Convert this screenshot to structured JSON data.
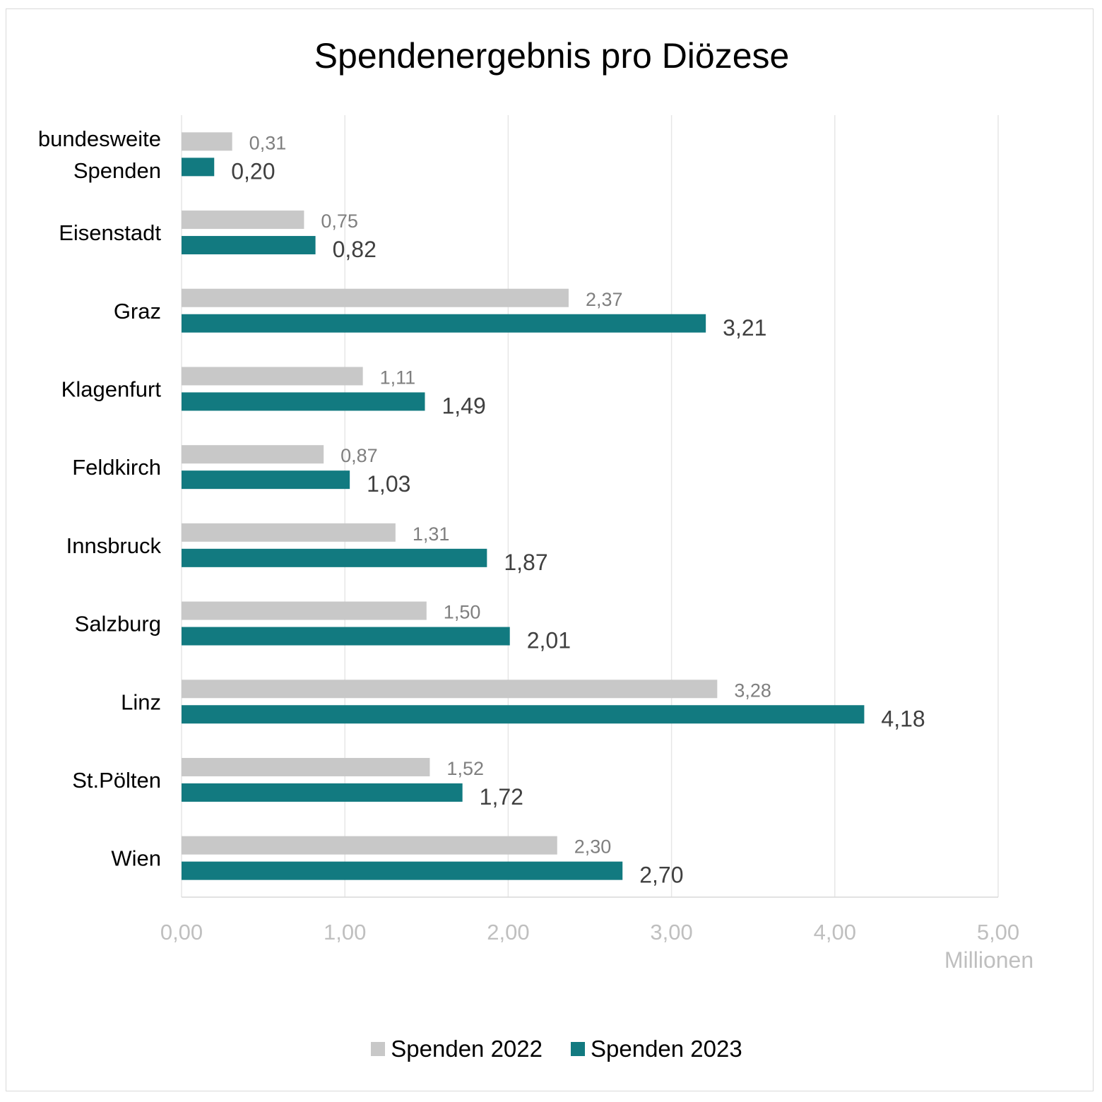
{
  "chart_data": {
    "type": "bar",
    "orientation": "horizontal",
    "title": "Spendenergebnis pro Diözese",
    "xlabel": "",
    "ylabel": "",
    "x_unit_label": "Millionen",
    "xlim": [
      0,
      5
    ],
    "x_ticks": [
      0,
      1,
      2,
      3,
      4,
      5
    ],
    "x_tick_labels": [
      "0,00",
      "1,00",
      "2,00",
      "3,00",
      "4,00",
      "5,00"
    ],
    "grid": true,
    "legend_position": "bottom",
    "categories": [
      "bundesweite Spenden",
      "Eisenstadt",
      "Graz",
      "Klagenfurt",
      "Feldkirch",
      "Innsbruck",
      "Salzburg",
      "Linz",
      "St.Pölten",
      "Wien"
    ],
    "category_lines": [
      [
        "bundesweite",
        "Spenden"
      ],
      [
        "Eisenstadt"
      ],
      [
        "Graz"
      ],
      [
        "Klagenfurt"
      ],
      [
        "Feldkirch"
      ],
      [
        "Innsbruck"
      ],
      [
        "Salzburg"
      ],
      [
        "Linz"
      ],
      [
        "St.Pölten"
      ],
      [
        "Wien"
      ]
    ],
    "series": [
      {
        "name": "Spenden 2022",
        "color": "#c8c8c8",
        "label_color": "#7f7f7f",
        "values": [
          0.31,
          0.75,
          2.37,
          1.11,
          0.87,
          1.31,
          1.5,
          3.28,
          1.52,
          2.3
        ],
        "labels": [
          "0,31",
          "0,75",
          "2,37",
          "1,11",
          "0,87",
          "1,31",
          "1,50",
          "3,28",
          "1,52",
          "2,30"
        ]
      },
      {
        "name": "Spenden 2023",
        "color": "#127a80",
        "label_color": "#404040",
        "values": [
          0.2,
          0.82,
          3.21,
          1.49,
          1.03,
          1.87,
          2.01,
          4.18,
          1.72,
          2.7
        ],
        "labels": [
          "0,20",
          "0,82",
          "3,21",
          "1,49",
          "1,03",
          "1,87",
          "2,01",
          "4,18",
          "1,72",
          "2,70"
        ]
      }
    ]
  }
}
